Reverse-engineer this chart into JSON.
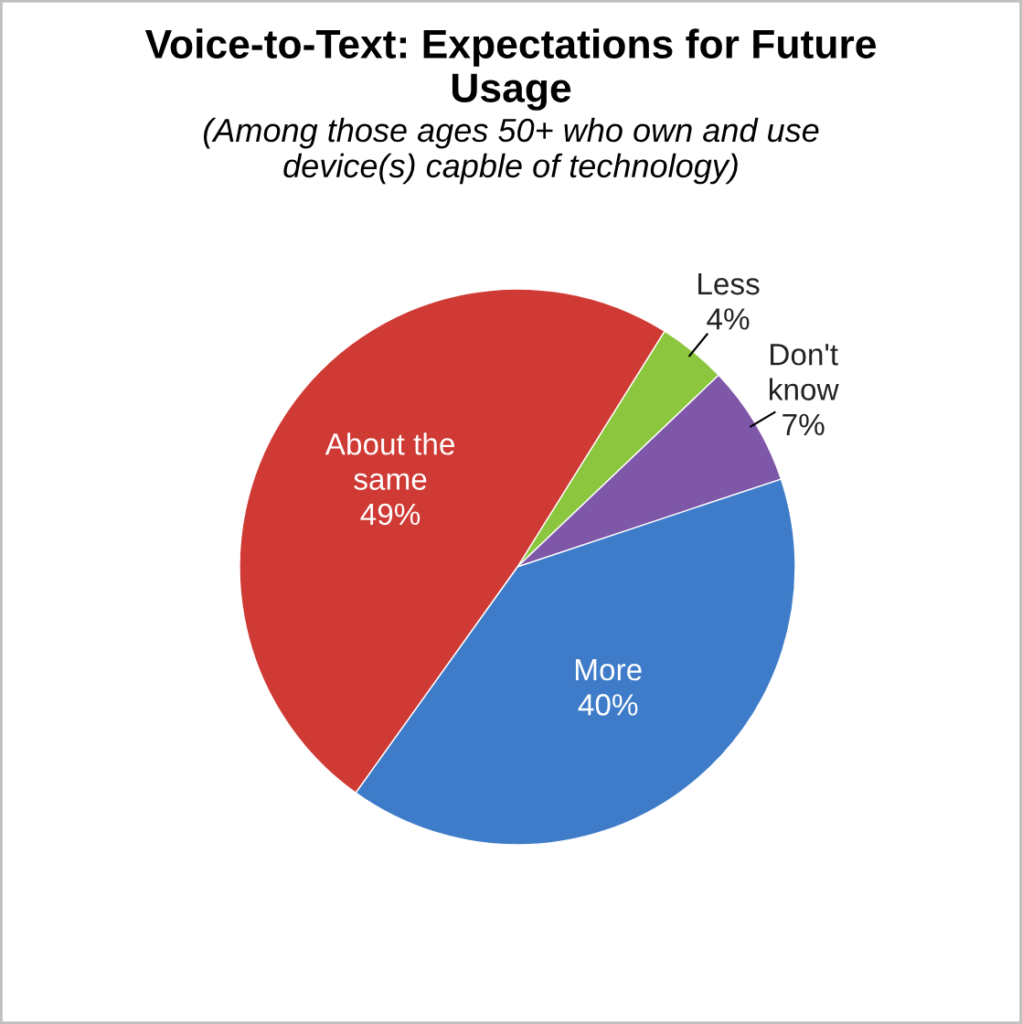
{
  "chart_data": {
    "type": "pie",
    "title": "Voice-to-Text: Expectations for Future\nUsage",
    "subtitle": "(Among those ages 50+ who own and use\ndevice(s) capble of technology)",
    "categories": [
      "Less",
      "Don't\nknow",
      "More",
      "About the\nsame"
    ],
    "values": [
      4,
      7,
      40,
      49
    ],
    "colors": [
      "#8cc63e",
      "#7e57a8",
      "#3e7cc9",
      "#cf3a35"
    ],
    "value_labels": [
      "4%",
      "7%",
      "40%",
      "49%"
    ],
    "legend": false
  }
}
